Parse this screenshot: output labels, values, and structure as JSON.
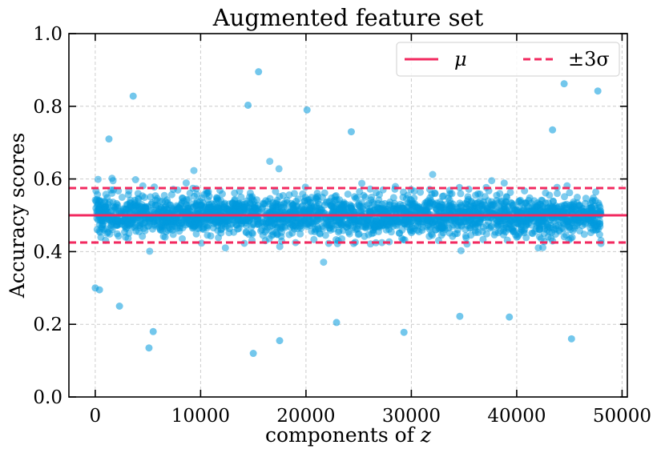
{
  "chart_data": {
    "type": "scatter",
    "title": "Augmented feature set",
    "xlabel": "components of z",
    "ylabel": "Accuracy scores",
    "xlim": [
      -2500,
      50500
    ],
    "ylim": [
      0.0,
      1.0
    ],
    "x_ticks": [
      0,
      10000,
      20000,
      30000,
      40000,
      50000
    ],
    "y_ticks": [
      0.0,
      0.2,
      0.4,
      0.6,
      0.8,
      1.0
    ],
    "x_tick_labels": [
      "0",
      "10000",
      "20000",
      "30000",
      "40000",
      "50000"
    ],
    "y_tick_labels": [
      "0.0",
      "0.2",
      "0.4",
      "0.6",
      "0.8",
      "1.0"
    ],
    "grid": true,
    "legend_position": "top-right",
    "legend": [
      {
        "label": "μ",
        "style": "solid",
        "color": "#f2295f"
      },
      {
        "label": "±3σ",
        "style": "dashed",
        "color": "#f2295f"
      }
    ],
    "scatter_color": "#0099dd",
    "n_components": 48000,
    "mean": 0.5,
    "upper_3sigma": 0.575,
    "lower_3sigma": 0.425,
    "outliers": [
      {
        "x": 3600,
        "y": 0.828
      },
      {
        "x": 15500,
        "y": 0.895
      },
      {
        "x": 14500,
        "y": 0.803
      },
      {
        "x": 20100,
        "y": 0.79
      },
      {
        "x": 44500,
        "y": 0.862
      },
      {
        "x": 47700,
        "y": 0.842
      },
      {
        "x": 43400,
        "y": 0.735
      },
      {
        "x": 24300,
        "y": 0.73
      },
      {
        "x": 1300,
        "y": 0.71
      },
      {
        "x": 5100,
        "y": 0.135
      },
      {
        "x": 15000,
        "y": 0.12
      },
      {
        "x": 17500,
        "y": 0.155
      },
      {
        "x": 45200,
        "y": 0.16
      },
      {
        "x": 29300,
        "y": 0.178
      },
      {
        "x": 5500,
        "y": 0.18
      },
      {
        "x": 22900,
        "y": 0.205
      },
      {
        "x": 2300,
        "y": 0.25
      },
      {
        "x": 34600,
        "y": 0.222
      },
      {
        "x": 39300,
        "y": 0.22
      },
      {
        "x": 0,
        "y": 0.3
      },
      {
        "x": 400,
        "y": 0.295
      }
    ]
  }
}
